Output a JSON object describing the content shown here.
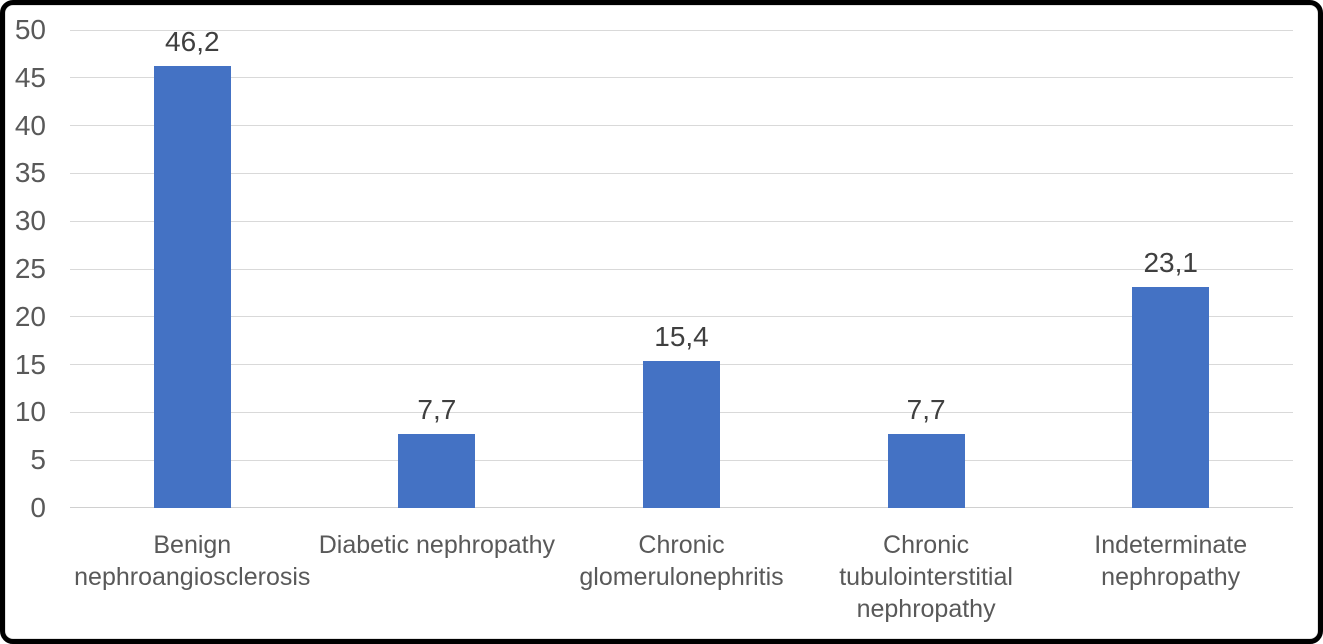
{
  "chart_data": {
    "type": "bar",
    "title": "",
    "xlabel": "",
    "ylabel": "",
    "categories": [
      "Benign nephroangiosclerosis",
      "Diabetic nephropathy",
      "Chronic glomerulonephritis",
      "Chronic tubulointerstitial nephropathy",
      "Indeterminate nephropathy"
    ],
    "values": [
      46.2,
      7.7,
      15.4,
      7.7,
      23.1
    ],
    "value_labels": [
      "46,2",
      "7,7",
      "15,4",
      "7,7",
      "23,1"
    ],
    "ylim": [
      0,
      50
    ],
    "ytick_step": 5,
    "yticks": [
      0,
      5,
      10,
      15,
      20,
      25,
      30,
      35,
      40,
      45,
      50
    ],
    "grid": true,
    "legend": false,
    "colors": {
      "bar": "#4472C4",
      "gridline": "#D9D9D9",
      "axis_line": "#D0D0D0",
      "tick_label": "#595959",
      "category_label": "#595959",
      "data_label": "#3F3F3F",
      "frame_border": "#000000",
      "background": "#FFFFFF"
    }
  }
}
